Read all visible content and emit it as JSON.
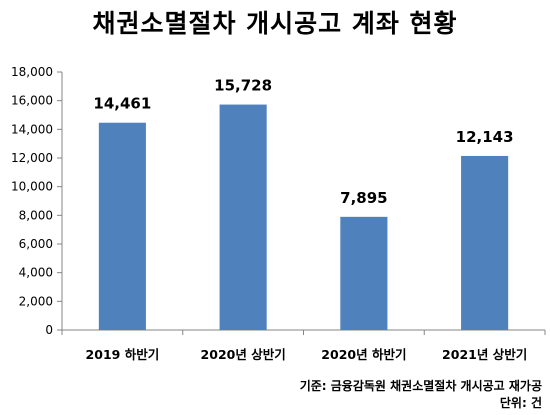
{
  "chart_data": {
    "type": "bar",
    "title": "채권소멸절차 개시공고 계좌 현황",
    "categories": [
      "2019 하반기",
      "2020년 상반기",
      "2020년 하반기",
      "2021년 상반기"
    ],
    "values": [
      14461,
      15728,
      7895,
      12143
    ],
    "data_labels": [
      "14,461",
      "15,728",
      "7,895",
      "12,143"
    ],
    "ylim": [
      0,
      18000
    ],
    "yticks": [
      "0",
      "2,000",
      "4,000",
      "6,000",
      "8,000",
      "10,000",
      "12,000",
      "14,000",
      "16,000",
      "18,000"
    ],
    "ytick_values": [
      0,
      2000,
      4000,
      6000,
      8000,
      10000,
      12000,
      14000,
      16000,
      18000
    ],
    "bar_color": "#4F81BD",
    "grid": false,
    "legend": "none"
  },
  "footer": {
    "source": "기준: 금융감독원 채권소멸절차 개시공고 재가공",
    "unit": "단위: 건"
  }
}
